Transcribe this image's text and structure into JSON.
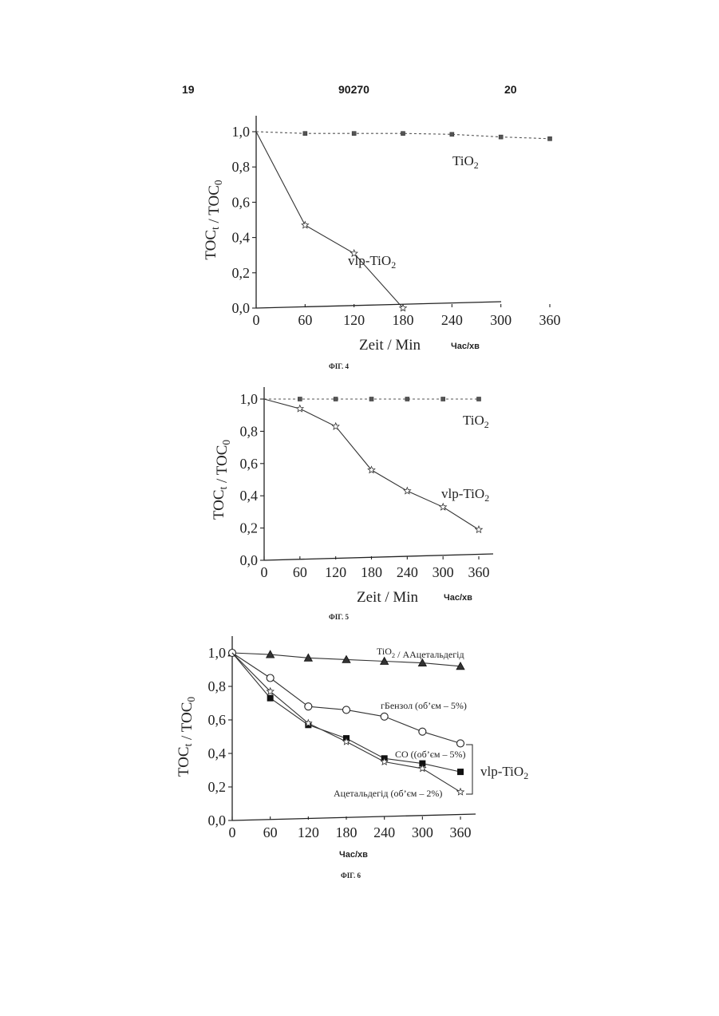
{
  "header": {
    "left": "19",
    "center": "90270",
    "right": "20"
  },
  "chart_data": [
    {
      "type": "line",
      "caption": "ФІГ. 4",
      "ylabel": "TOCt / TOC0",
      "xlabel": "Zeit / Min",
      "xlabel_unit": "Час/хв",
      "xlim": [
        0,
        420
      ],
      "ylim": [
        0,
        1.0
      ],
      "xticks": [
        "0",
        "60",
        "120",
        "180",
        "240",
        "300",
        "360"
      ],
      "yticks": [
        "0,0",
        "0,2",
        "0,4",
        "0,6",
        "0,8",
        "1,0"
      ],
      "series": [
        {
          "name": "TiO2",
          "marker": "square",
          "style": "dotted",
          "x": [
            0,
            60,
            120,
            180,
            240,
            300,
            360
          ],
          "y": [
            1.0,
            0.99,
            0.99,
            0.99,
            0.985,
            0.97,
            0.96
          ]
        },
        {
          "name": "vlp-TiO2",
          "marker": "star",
          "style": "solid",
          "x": [
            0,
            60,
            120,
            180
          ],
          "y": [
            1.0,
            0.47,
            0.31,
            0.0
          ]
        }
      ]
    },
    {
      "type": "line",
      "caption": "ФІГ. 5",
      "ylabel": "TOCt / TOC0",
      "xlabel": "Zeit / Min",
      "xlabel_unit": "Час/хв",
      "xlim": [
        0,
        420
      ],
      "ylim": [
        0,
        1.0
      ],
      "xticks": [
        "0",
        "60",
        "120",
        "180",
        "240",
        "300",
        "360"
      ],
      "yticks": [
        "0,0",
        "0,2",
        "0,4",
        "0,6",
        "0,8",
        "1,0"
      ],
      "series": [
        {
          "name": "TiO2",
          "marker": "square",
          "style": "dotted",
          "x": [
            0,
            60,
            120,
            180,
            240,
            300,
            360
          ],
          "y": [
            1.0,
            1.0,
            1.0,
            1.0,
            1.0,
            1.0,
            1.0
          ]
        },
        {
          "name": "vlp-TiO2",
          "marker": "star",
          "style": "solid",
          "x": [
            0,
            60,
            120,
            180,
            240,
            300,
            360
          ],
          "y": [
            1.0,
            0.94,
            0.83,
            0.56,
            0.43,
            0.33,
            0.19
          ]
        }
      ]
    },
    {
      "type": "line",
      "caption": "ФІГ. 6",
      "ylabel": "TOCt / TOC0",
      "xlabel": "",
      "xlabel_unit": "Час/хв",
      "xlim": [
        0,
        420
      ],
      "ylim": [
        0,
        1.0
      ],
      "xticks": [
        "0",
        "60",
        "120",
        "180",
        "240",
        "300",
        "360"
      ],
      "yticks": [
        "0,0",
        "0,2",
        "0,4",
        "0,6",
        "0,8",
        "1,0"
      ],
      "group_label": "vlp-TiO2",
      "series": [
        {
          "name": "TiO2 / ААцетальдегід",
          "marker": "triangle",
          "x": [
            0,
            60,
            120,
            180,
            240,
            300,
            360
          ],
          "y": [
            1.0,
            0.99,
            0.97,
            0.96,
            0.95,
            0.94,
            0.92
          ]
        },
        {
          "name": "гБензол (об’єм – 5%)",
          "marker": "circle",
          "x": [
            0,
            60,
            120,
            180,
            240,
            300,
            360
          ],
          "y": [
            1.0,
            0.85,
            0.68,
            0.66,
            0.62,
            0.53,
            0.46
          ]
        },
        {
          "name": "CO  ((об’єм – 5%)",
          "marker": "filled-square",
          "x": [
            0,
            60,
            120,
            180,
            240,
            300,
            360
          ],
          "y": [
            1.0,
            0.73,
            0.57,
            0.49,
            0.37,
            0.34,
            0.29
          ]
        },
        {
          "name": "Ацетальдегід (об’єм – 2%)",
          "marker": "star",
          "x": [
            0,
            60,
            120,
            180,
            240,
            300,
            360
          ],
          "y": [
            1.0,
            0.77,
            0.58,
            0.47,
            0.35,
            0.31,
            0.17
          ]
        }
      ]
    }
  ]
}
